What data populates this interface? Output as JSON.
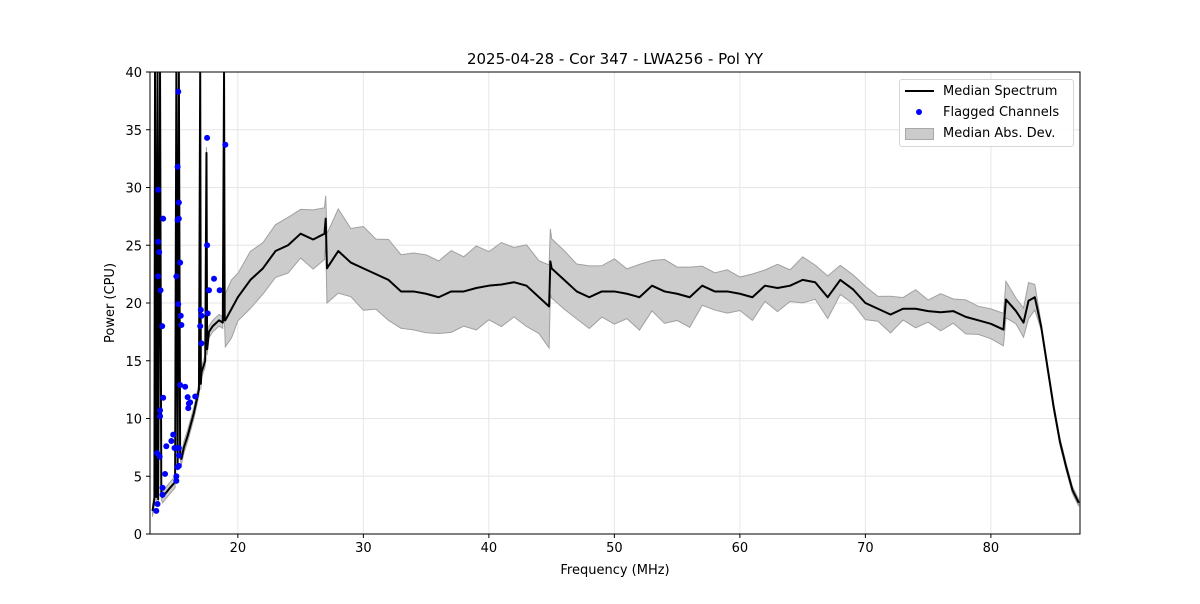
{
  "chart_data": {
    "type": "line",
    "title": "2025-04-28 - Cor 347 - LWA256 - Pol YY",
    "xlabel": "Frequency (MHz)",
    "ylabel": "Power (CPU)",
    "xlim": [
      13.0,
      87.1
    ],
    "ylim": [
      0,
      40
    ],
    "xticks": [
      20,
      30,
      40,
      50,
      60,
      70,
      80
    ],
    "yticks": [
      0,
      5,
      10,
      15,
      20,
      25,
      30,
      35,
      40
    ],
    "grid": true,
    "legend_position": "top-right",
    "legend": [
      "Median Spectrum",
      "Flagged Channels",
      "Median Abs. Dev."
    ],
    "colors": {
      "median": "#000000",
      "flagged": "#0000ff",
      "band": "#cccccc",
      "band_edge": "#a0a0a0"
    },
    "median_spectrum": {
      "freq": [
        13.2,
        13.35,
        13.4,
        13.5,
        13.6,
        13.65,
        13.8,
        13.9,
        14.0,
        14.3,
        14.6,
        15.0,
        15.1,
        15.2,
        15.3,
        15.4,
        15.5,
        15.7,
        16.0,
        16.5,
        16.9,
        17.0,
        17.05,
        17.1,
        17.4,
        17.5,
        17.55,
        17.7,
        18.0,
        18.5,
        18.8,
        18.9,
        18.95,
        19.0,
        19.5,
        20.0,
        21.0,
        22.0,
        23.0,
        24.0,
        25.0,
        26.0,
        26.9,
        27.0,
        27.1,
        28.0,
        29.0,
        30.0,
        31.0,
        32.0,
        33.0,
        34.0,
        35.0,
        36.0,
        37.0,
        38.0,
        39.0,
        40.0,
        41.0,
        42.0,
        43.0,
        44.0,
        44.8,
        44.9,
        45.0,
        46.0,
        47.0,
        48.0,
        49.0,
        50.0,
        51.0,
        52.0,
        53.0,
        54.0,
        55.0,
        56.0,
        57.0,
        58.0,
        59.0,
        60.0,
        61.0,
        62.0,
        63.0,
        64.0,
        65.0,
        66.0,
        67.0,
        68.0,
        69.0,
        70.0,
        71.0,
        72.0,
        73.0,
        74.0,
        75.0,
        76.0,
        77.0,
        78.0,
        79.0,
        80.0,
        81.0,
        81.2,
        82.0,
        82.6,
        83.0,
        83.5,
        84.0,
        85.0,
        85.5,
        86.0,
        86.5,
        87.0
      ],
      "power": [
        2.0,
        3.0,
        40,
        3.2,
        40,
        3.0,
        40,
        3.5,
        3.2,
        3.6,
        4.0,
        4.5,
        40,
        6.0,
        40,
        7.0,
        6.5,
        7.5,
        8.5,
        10.5,
        12.5,
        40,
        13.0,
        14.0,
        15.0,
        33,
        16.0,
        17.5,
        18.0,
        18.5,
        18.3,
        40,
        18.5,
        18.5,
        19.5,
        20.5,
        22.0,
        23.0,
        24.5,
        25.0,
        26.0,
        25.5,
        26.0,
        27.3,
        23.0,
        24.5,
        23.5,
        23.0,
        22.5,
        22.0,
        21.0,
        21.0,
        20.8,
        20.5,
        21.0,
        21.0,
        21.3,
        21.5,
        21.6,
        21.8,
        21.5,
        20.5,
        19.7,
        23.6,
        23.0,
        22.0,
        21.0,
        20.5,
        21.0,
        21.0,
        20.8,
        20.5,
        21.5,
        21.0,
        20.8,
        20.5,
        21.5,
        21.0,
        21.0,
        20.8,
        20.5,
        21.5,
        21.3,
        21.5,
        22.0,
        21.8,
        20.5,
        22.0,
        21.2,
        20.0,
        19.5,
        19.0,
        19.5,
        19.5,
        19.3,
        19.2,
        19.3,
        18.8,
        18.5,
        18.2,
        17.7,
        20.3,
        19.3,
        18.3,
        20.2,
        20.5,
        18.0,
        11.0,
        8.0,
        5.8,
        3.8,
        2.7
      ]
    },
    "median_abs_dev_segments": [
      {
        "from": 13.0,
        "to": 19.0,
        "mad": 0.5
      },
      {
        "from": 19.0,
        "to": 27.05,
        "mad": 2.3
      },
      {
        "from": 27.05,
        "to": 44.85,
        "mad": 3.3
      },
      {
        "from": 44.85,
        "to": 56.5,
        "mad": 2.5
      },
      {
        "from": 56.5,
        "to": 68.0,
        "mad": 1.7
      },
      {
        "from": 68.0,
        "to": 83.8,
        "mad": 1.3
      },
      {
        "from": 83.8,
        "to": 87.1,
        "mad": 0.3
      }
    ],
    "flagged_channels": [
      [
        13.65,
        29.8
      ],
      [
        14.05,
        27.3
      ],
      [
        13.65,
        25.3
      ],
      [
        13.73,
        24.4
      ],
      [
        13.65,
        22.3
      ],
      [
        13.84,
        21.1
      ],
      [
        13.97,
        18.0
      ],
      [
        14.05,
        11.8
      ],
      [
        13.8,
        10.7
      ],
      [
        13.8,
        10.2
      ],
      [
        13.57,
        7.0
      ],
      [
        13.77,
        6.7
      ],
      [
        14.3,
        7.6
      ],
      [
        14.7,
        8.05
      ],
      [
        14.85,
        8.6
      ],
      [
        14.2,
        5.2
      ],
      [
        14.0,
        4.0
      ],
      [
        14.0,
        3.4
      ],
      [
        13.6,
        2.6
      ],
      [
        13.5,
        2.0
      ],
      [
        15.1,
        5.0
      ],
      [
        15.1,
        4.6
      ],
      [
        15.25,
        38.3
      ],
      [
        15.2,
        31.8
      ],
      [
        15.3,
        28.7
      ],
      [
        15.2,
        27.2
      ],
      [
        15.3,
        27.3
      ],
      [
        15.4,
        23.5
      ],
      [
        15.1,
        22.3
      ],
      [
        15.25,
        19.9
      ],
      [
        15.45,
        18.9
      ],
      [
        15.5,
        18.1
      ],
      [
        15.4,
        12.9
      ],
      [
        15.8,
        12.75
      ],
      [
        16.0,
        11.85
      ],
      [
        16.1,
        11.3
      ],
      [
        16.05,
        10.9
      ],
      [
        16.2,
        11.4
      ],
      [
        16.6,
        11.9
      ],
      [
        14.95,
        7.45
      ],
      [
        15.15,
        7.45
      ],
      [
        15.3,
        7.45
      ],
      [
        15.3,
        6.8
      ],
      [
        15.2,
        5.8
      ],
      [
        15.3,
        5.9
      ],
      [
        17.55,
        34.3
      ],
      [
        17.55,
        25.0
      ],
      [
        18.1,
        22.1
      ],
      [
        17.7,
        21.1
      ],
      [
        18.55,
        21.1
      ],
      [
        17.05,
        19.4
      ],
      [
        17.1,
        18.9
      ],
      [
        17.6,
        19.1
      ],
      [
        17.0,
        18.0
      ],
      [
        17.1,
        16.5
      ],
      [
        19.0,
        33.7
      ]
    ]
  }
}
